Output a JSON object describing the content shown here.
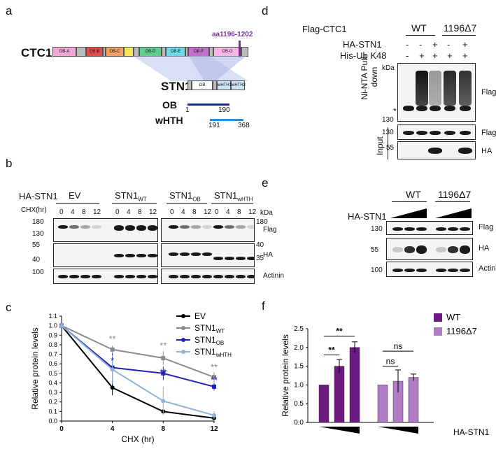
{
  "panels": {
    "a": {
      "label": "a",
      "ctc1": "CTC1",
      "stn1": "STN1",
      "site": "aa1196-1202",
      "ctc1_domains": [
        "OB-A",
        "OB-B",
        "OB-C",
        "OB-D",
        "OB-E",
        "OB-F",
        "OB-G"
      ],
      "stn1_domains": [
        "OB",
        "wHTH1",
        "wHTH2"
      ],
      "ob_label": "OB",
      "ob_start": "1",
      "ob_end": "190",
      "whth_label": "wHTH",
      "whth_start": "191",
      "whth_end": "368",
      "colors": {
        "ob_a": "#f2a6d8",
        "ob_b": "#e14d4d",
        "ob_c": "#f4a063",
        "yellow": "#f6e45a",
        "ob_d": "#5fcf8f",
        "ob_e": "#6fd9e6",
        "ob_f": "#c46fd0",
        "ob_g": "#f7b6e6",
        "site": "#7a2f9e",
        "ob_bar": "#1c2f8c",
        "whth_bar": "#2f8fd0"
      }
    },
    "b": {
      "label": "b",
      "row_label": "HA-STN1",
      "chx_label": "CHX(hr)",
      "groups": [
        {
          "name": "EV",
          "sub": ""
        },
        {
          "name": "STN1",
          "sub": "WT"
        },
        {
          "name": "STN1",
          "sub": "OB"
        },
        {
          "name": "STN1",
          "sub": "wHTH"
        }
      ],
      "timepoints": [
        "0",
        "4",
        "8",
        "12"
      ],
      "kda": "kDa",
      "left_markers": [
        "180",
        "130",
        "55",
        "40",
        "100"
      ],
      "right_markers": [
        "180",
        "40",
        "35"
      ],
      "blots": [
        "Flag",
        "HA",
        "Actinin"
      ]
    },
    "c": {
      "label": "c"
    },
    "d": {
      "label": "d",
      "rows": [
        "Flag-CTC1",
        "HA-STN1",
        "His-Ub K48"
      ],
      "groups": [
        "WT",
        "1196Δ7"
      ],
      "ha_signs": [
        "-",
        "-",
        "+",
        "-",
        "+"
      ],
      "ub_signs": [
        "-",
        "+",
        "+",
        "+",
        "+"
      ],
      "kda": "kDa",
      "pulldown": "Ni-NTA Pull-down",
      "input": "Input",
      "asterisk": "*",
      "markers": [
        "130",
        "130",
        "55"
      ],
      "blots": [
        "Flag",
        "Flag",
        "HA"
      ]
    },
    "e": {
      "label": "e",
      "row_label": "HA-STN1",
      "groups": [
        "WT",
        "1196Δ7"
      ],
      "markers": [
        "130",
        "55",
        "100"
      ],
      "blots": [
        "Flag",
        "HA",
        "Actinin"
      ]
    },
    "f": {
      "label": "f",
      "x_label": "HA-STN1"
    }
  },
  "chart_data": [
    {
      "type": "line",
      "panel": "c",
      "xlabel": "CHX (hr)",
      "ylabel": "Relative protein levels",
      "x": [
        0,
        4,
        8,
        12
      ],
      "xticks": [
        0,
        4,
        8,
        12
      ],
      "yticks": [
        0.0,
        0.1,
        0.2,
        0.3,
        0.4,
        0.5,
        0.6,
        0.7,
        0.8,
        0.9,
        1.0,
        1.1
      ],
      "xlim": [
        0,
        12
      ],
      "ylim": [
        0,
        1.1
      ],
      "legend": "top-right",
      "series": [
        {
          "name": "EV",
          "sub": "",
          "color": "#000000",
          "values": [
            1.0,
            0.35,
            0.1,
            0.03
          ],
          "errors": [
            0,
            0.08,
            0.02,
            0.01
          ]
        },
        {
          "name": "STN1",
          "sub": "WT",
          "color": "#8a8a8a",
          "values": [
            1.0,
            0.75,
            0.66,
            0.46
          ],
          "errors": [
            0,
            0.04,
            0.07,
            0.05
          ]
        },
        {
          "name": "STN1",
          "sub": "OB",
          "color": "#1f20b8",
          "values": [
            1.0,
            0.56,
            0.5,
            0.36
          ],
          "errors": [
            0,
            0.15,
            0.07,
            0.04
          ]
        },
        {
          "name": "STN1",
          "sub": "wHTH",
          "color": "#8fb2d8",
          "values": [
            1.0,
            0.54,
            0.21,
            0.06
          ],
          "errors": [
            0,
            0.15,
            0.15,
            0.04
          ]
        }
      ],
      "annotations": [
        {
          "x": 4,
          "y": 0.83,
          "text": "**",
          "color": "#8a8a8a"
        },
        {
          "x": 8,
          "y": 0.76,
          "text": "**",
          "color": "#8a8a8a"
        },
        {
          "x": 12,
          "y": 0.53,
          "text": "**",
          "color": "#8a8a8a"
        },
        {
          "x": 4,
          "y": 0.6,
          "text": "*",
          "color": "#1f20b8"
        },
        {
          "x": 8,
          "y": 0.48,
          "text": "**",
          "color": "#1f20b8"
        },
        {
          "x": 12,
          "y": 0.4,
          "text": "**",
          "color": "#1f20b8"
        }
      ]
    },
    {
      "type": "bar",
      "panel": "f",
      "ylabel": "Relative protein levels",
      "yticks": [
        0.0,
        0.5,
        1.0,
        1.5,
        2.0,
        2.5
      ],
      "ylim": [
        0,
        2.5
      ],
      "legend": "top-right",
      "series": [
        {
          "name": "WT",
          "color": "#6a1a80",
          "values": [
            1.0,
            1.5,
            2.0
          ],
          "errors": [
            0,
            0.18,
            0.15
          ]
        },
        {
          "name": "1196Δ7",
          "color": "#b07cc4",
          "values": [
            1.0,
            1.1,
            1.2
          ],
          "errors": [
            0,
            0.3,
            0.09
          ]
        }
      ],
      "significance": [
        {
          "series": 0,
          "from": 0,
          "to": 1,
          "text": "**"
        },
        {
          "series": 0,
          "from": 0,
          "to": 2,
          "text": "**"
        },
        {
          "series": 1,
          "from": 0,
          "to": 1,
          "text": "ns"
        },
        {
          "series": 1,
          "from": 0,
          "to": 2,
          "text": "ns"
        }
      ]
    }
  ]
}
